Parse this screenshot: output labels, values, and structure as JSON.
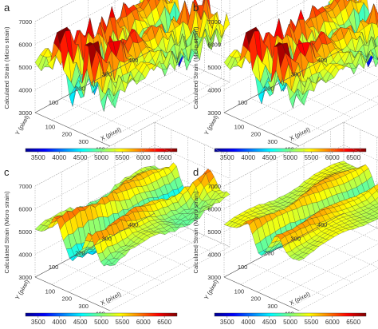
{
  "chart_data": [
    {
      "type": "surface",
      "panel_label": "a",
      "zlabel": "Calculated Strain (Micro strain)",
      "ylabel": "Y (pixel)",
      "xlabel": "X (pixel)",
      "zticks": [
        "3000",
        "4000",
        "5000",
        "6000",
        "7000"
      ],
      "yticks": [
        "100",
        "200",
        "300",
        "400"
      ],
      "xticks": [
        "100",
        "200",
        "300",
        "400"
      ],
      "xlim": [
        0,
        450
      ],
      "ylim": [
        0,
        450
      ],
      "zlim": [
        3000,
        7000
      ],
      "surface": {
        "ridges_x": [
          130,
          300
        ],
        "ridge_amp": 1300,
        "base": 5200,
        "noise": 1.0,
        "wave_y": 0.45,
        "spikes": true
      },
      "colorbar": {
        "ticks": [
          "3500",
          "4000",
          "4500",
          "5000",
          "5500",
          "6000",
          "6500"
        ],
        "range": [
          3200,
          6800
        ]
      }
    },
    {
      "type": "surface",
      "panel_label": "b",
      "zlabel": "Calculated Strain (Micro strain)",
      "ylabel": "Y (pixel)",
      "xlabel": "X (pixel)",
      "zticks": [
        "3000",
        "4000",
        "5000",
        "6000",
        "7000"
      ],
      "yticks": [
        "100",
        "200",
        "300",
        "400"
      ],
      "xticks": [
        "100",
        "200",
        "300",
        "400"
      ],
      "xlim": [
        0,
        450
      ],
      "ylim": [
        0,
        450
      ],
      "zlim": [
        3000,
        7000
      ],
      "surface": {
        "ridges_x": [
          130,
          300
        ],
        "ridge_amp": 1250,
        "base": 5200,
        "noise": 0.8,
        "wave_y": 0.4,
        "spikes": true
      },
      "colorbar": {
        "ticks": [
          "3500",
          "4000",
          "4500",
          "5000",
          "5500",
          "6000",
          "6500"
        ],
        "range": [
          3200,
          6800
        ]
      }
    },
    {
      "type": "surface",
      "panel_label": "c",
      "zlabel": "Calculated Strain (Micro strain)",
      "ylabel": "Y (pixel)",
      "xlabel": "X (pixel)",
      "zticks": [
        "3000",
        "4000",
        "5000",
        "6000",
        "7000"
      ],
      "yticks": [
        "100",
        "200",
        "300",
        "400"
      ],
      "xticks": [
        "100",
        "200",
        "300",
        "400"
      ],
      "xlim": [
        0,
        450
      ],
      "ylim": [
        0,
        450
      ],
      "zlim": [
        3000,
        7000
      ],
      "surface": {
        "ridges_x": [
          120,
          310
        ],
        "ridge_amp": 900,
        "base": 5100,
        "noise": 0.15,
        "wave_y": 0.5,
        "spikes": false
      },
      "colorbar": {
        "ticks": [
          "3500",
          "4000",
          "4500",
          "5000",
          "5500",
          "6000",
          "6500"
        ],
        "range": [
          3200,
          6800
        ]
      }
    },
    {
      "type": "surface",
      "panel_label": "d",
      "zlabel": "Calculated Strain (Micro strain)",
      "ylabel": "Y (pixel)",
      "xlabel": "X (pixel)",
      "zticks": [
        "3000",
        "4000",
        "5000",
        "6000",
        "7000"
      ],
      "yticks": [
        "100",
        "200",
        "300",
        "400"
      ],
      "xticks": [
        "100",
        "200",
        "300",
        "400"
      ],
      "xlim": [
        0,
        450
      ],
      "ylim": [
        0,
        450
      ],
      "zlim": [
        3000,
        7000
      ],
      "surface": {
        "ridges_x": [
          140,
          300
        ],
        "ridge_amp": 600,
        "base": 5300,
        "noise": 0.05,
        "wave_y": 0.35,
        "spikes": false
      },
      "colorbar": {
        "ticks": [
          "3500",
          "4000",
          "4500",
          "5000",
          "5500",
          "6000",
          "6500"
        ],
        "range": [
          3200,
          6800
        ]
      }
    }
  ],
  "colormap": [
    "#00008f",
    "#0000ff",
    "#0080ff",
    "#00ffff",
    "#80ff80",
    "#ffff00",
    "#ff8000",
    "#ff0000",
    "#800000"
  ]
}
